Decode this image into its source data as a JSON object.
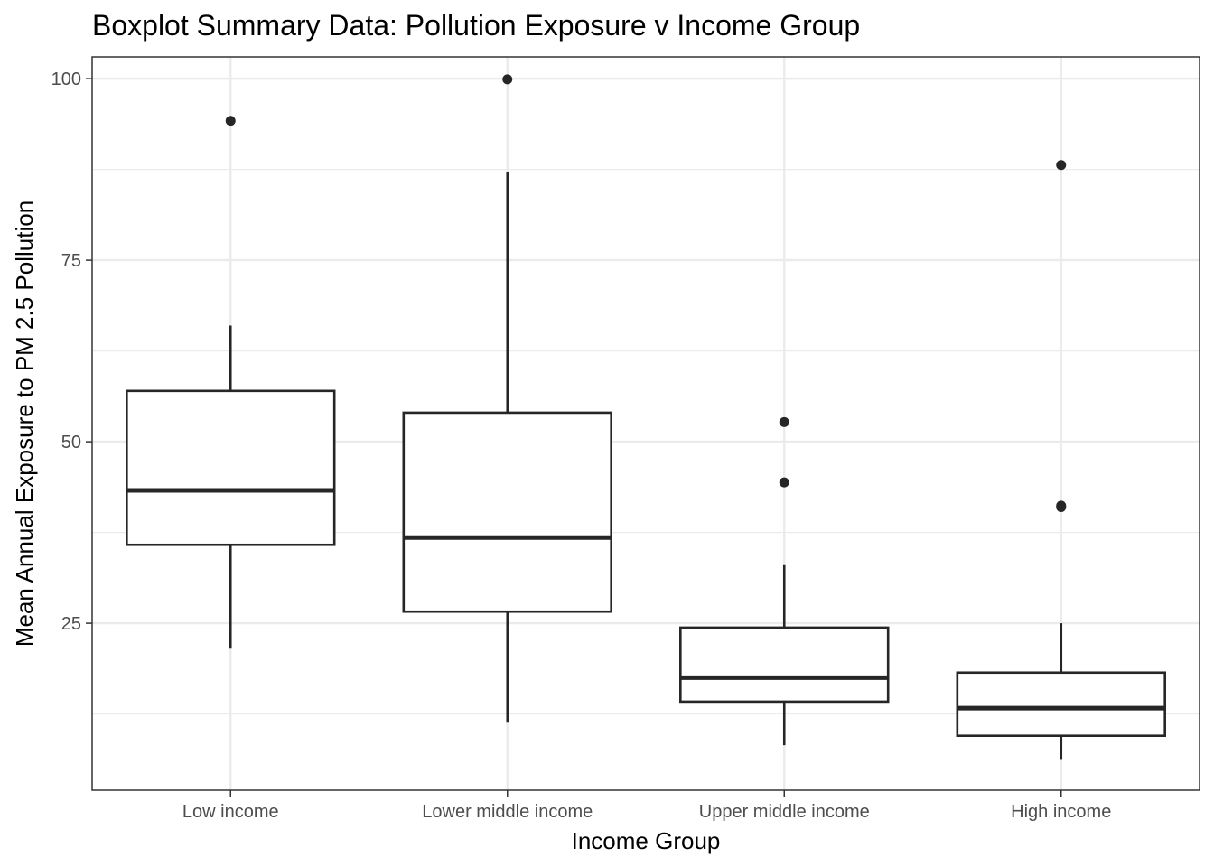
{
  "chart_data": {
    "type": "boxplot",
    "title": "Boxplot Summary Data: Pollution Exposure v Income Group",
    "xlabel": "Income Group",
    "ylabel": "Mean Annual Exposure to PM 2.5 Pollution",
    "categories": [
      "Low income",
      "Lower middle income",
      "Upper middle income",
      "High income"
    ],
    "ylim": [
      2,
      103
    ],
    "yticks": [
      25,
      50,
      75,
      100
    ],
    "ytick_labels": [
      "25",
      "50",
      "75",
      "100"
    ],
    "grid": true,
    "boxes": [
      {
        "category": "Low income",
        "whisker_low": 21.5,
        "q1": 35.8,
        "median": 43.3,
        "q3": 57.0,
        "whisker_high": 66.0,
        "outliers": [
          94.2
        ]
      },
      {
        "category": "Lower middle income",
        "whisker_low": 11.3,
        "q1": 26.6,
        "median": 36.8,
        "q3": 54.0,
        "whisker_high": 87.1,
        "outliers": [
          99.9
        ]
      },
      {
        "category": "Upper middle income",
        "whisker_low": 8.2,
        "q1": 14.2,
        "median": 17.5,
        "q3": 24.4,
        "whisker_high": 33.0,
        "outliers": [
          52.7,
          44.4
        ]
      },
      {
        "category": "High income",
        "whisker_low": 6.3,
        "q1": 9.5,
        "median": 13.3,
        "q3": 18.2,
        "whisker_high": 25.0,
        "outliers": [
          88.1,
          41.2,
          41.0
        ]
      }
    ],
    "colors": {
      "box": "#262626",
      "grid": "#ebebeb",
      "panel_border": "#333333",
      "tick_label": "#4d4d4d"
    }
  }
}
